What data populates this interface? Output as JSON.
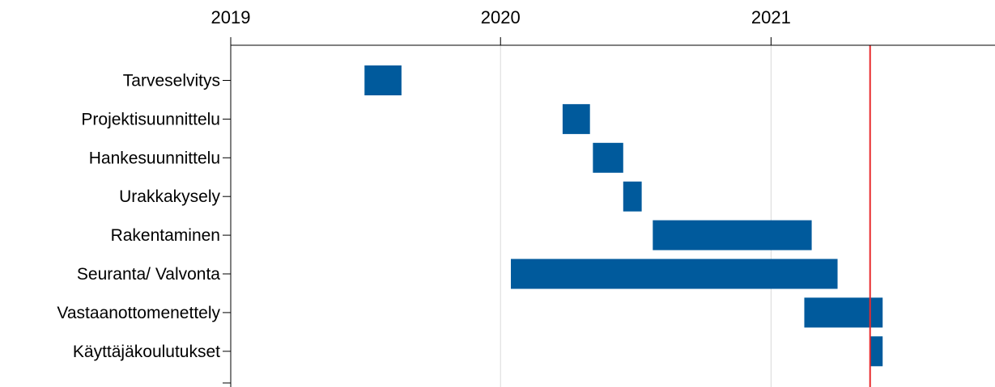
{
  "chart_data": {
    "type": "gantt",
    "title": "",
    "xlabel": "",
    "ylabel": "",
    "x_axis_position": "top",
    "x_ticks": [
      "2019",
      "2020",
      "2021"
    ],
    "xlim": [
      "2019-01-01",
      "2021-10-31"
    ],
    "grid": "vertical lines at year ticks",
    "bar_color": "#005A9C",
    "marker_line": {
      "date": "2021-05-15",
      "color": "#E8292B"
    },
    "tasks": [
      {
        "name": "Tarveselvitys",
        "start": "2019-07-01",
        "end": "2019-08-20"
      },
      {
        "name": "Projektisuunnittelu",
        "start": "2020-03-25",
        "end": "2020-05-01"
      },
      {
        "name": "Hankesuunnittelu",
        "start": "2020-05-05",
        "end": "2020-06-15"
      },
      {
        "name": "Urakkakysely",
        "start": "2020-06-15",
        "end": "2020-07-10"
      },
      {
        "name": "Rakentaminen",
        "start": "2020-07-25",
        "end": "2021-02-25"
      },
      {
        "name": "Seuranta/ Valvonta",
        "start": "2020-01-15",
        "end": "2021-04-01"
      },
      {
        "name": "Vastaanottomenettely",
        "start": "2021-02-15",
        "end": "2021-06-01"
      },
      {
        "name": "Käyttäjäkoulutukset",
        "start": "2021-05-15",
        "end": "2021-06-01"
      }
    ]
  }
}
